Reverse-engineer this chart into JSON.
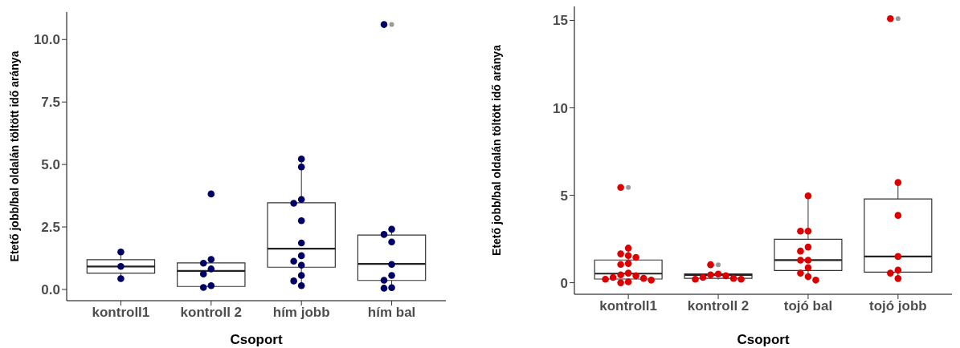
{
  "chart_data": [
    {
      "type": "box",
      "xlabel": "Csoport",
      "ylabel": "Etető jobb/bal oldalán töltött idő aránya",
      "categories": [
        "kontroll1",
        "kontroll 2",
        "hím jobb",
        "hím bal"
      ],
      "ylim": [
        -0.45,
        11.1
      ],
      "yticks": [
        {
          "value": 0,
          "label": "0.0"
        },
        {
          "value": 2.5,
          "label": "2.5"
        },
        {
          "value": 5,
          "label": "5.0"
        },
        {
          "value": 7.5,
          "label": "7.5"
        },
        {
          "value": 10,
          "label": "10.0"
        }
      ],
      "grid": false,
      "marker": "circle",
      "boxes": [
        {
          "low": 0.43,
          "q1": 0.65,
          "median": 0.92,
          "q3": 1.19,
          "high": 1.5
        },
        {
          "low": 0.08,
          "q1": 0.12,
          "median": 0.74,
          "q3": 1.06,
          "high": 1.2
        },
        {
          "low": 0.16,
          "q1": 0.89,
          "median": 1.63,
          "q3": 3.47,
          "high": 5.22
        },
        {
          "low": 0.05,
          "q1": 0.36,
          "median": 1.02,
          "q3": 2.18,
          "high": 2.41,
          "outliers": [
            10.6
          ]
        }
      ],
      "series": [
        {
          "type": "scatter",
          "color": "#000066",
          "x": [
            "kontroll1",
            "kontroll1",
            "kontroll1",
            "kontroll 2",
            "kontroll 2",
            "kontroll 2",
            "kontroll 2",
            "kontroll 2",
            "kontroll 2",
            "kontroll 2",
            "hím jobb",
            "hím jobb",
            "hím jobb",
            "hím jobb",
            "hím jobb",
            "hím jobb",
            "hím jobb",
            "hím jobb",
            "hím jobb",
            "hím jobb",
            "hím jobb",
            "hím jobb",
            "hím bal",
            "hím bal",
            "hím bal",
            "hím bal",
            "hím bal",
            "hím bal",
            "hím bal",
            "hím bal",
            "hím bal"
          ],
          "values": [
            1.5,
            0.92,
            0.43,
            3.82,
            1.2,
            1.05,
            0.82,
            0.62,
            0.15,
            0.08,
            5.22,
            4.9,
            3.6,
            3.45,
            2.75,
            1.86,
            1.35,
            1.13,
            0.97,
            0.56,
            0.34,
            0.15,
            10.6,
            2.41,
            2.2,
            1.9,
            1.0,
            0.56,
            0.37,
            0.07,
            0.05
          ]
        }
      ]
    },
    {
      "type": "box",
      "xlabel": "Csoport",
      "ylabel": "Etető jobb/bal oldalán töltött idő aránya",
      "categories": [
        "kontroll1",
        "kontroll 2",
        "tojó bal",
        "tojó jobb"
      ],
      "ylim": [
        -0.66,
        15.8
      ],
      "yticks": [
        0,
        5,
        10,
        15
      ],
      "grid": false,
      "marker": "circle",
      "boxes": [
        {
          "low": 0.0,
          "q1": 0.21,
          "median": 0.52,
          "q3": 1.3,
          "high": 1.98,
          "outliers": [
            5.45
          ]
        },
        {
          "low": 0.18,
          "q1": 0.25,
          "median": 0.45,
          "q3": 0.5,
          "high": 0.55,
          "outliers": [
            1.03
          ]
        },
        {
          "low": 0.15,
          "q1": 0.7,
          "median": 1.29,
          "q3": 2.49,
          "high": 4.97
        },
        {
          "low": 0.26,
          "q1": 0.61,
          "median": 1.5,
          "q3": 4.79,
          "high": 5.73,
          "outliers": [
            15.1
          ]
        }
      ],
      "series": [
        {
          "type": "scatter",
          "color": "#dd0000",
          "x": [
            "kontroll1",
            "kontroll1",
            "kontroll1",
            "kontroll1",
            "kontroll1",
            "kontroll1",
            "kontroll1",
            "kontroll1",
            "kontroll1",
            "kontroll1",
            "kontroll1",
            "kontroll1",
            "kontroll1",
            "kontroll1",
            "kontroll1",
            "kontroll1",
            "kontroll 2",
            "kontroll 2",
            "kontroll 2",
            "kontroll 2",
            "kontroll 2",
            "kontroll 2",
            "kontroll 2",
            "kontroll 2",
            "tojó bal",
            "tojó bal",
            "tojó bal",
            "tojó bal",
            "tojó bal",
            "tojó bal",
            "tojó bal",
            "tojó bal",
            "tojó bal",
            "tojó bal",
            "tojó bal",
            "tojó jobb",
            "tojó jobb",
            "tojó jobb",
            "tojó jobb",
            "tojó jobb",
            "tojó jobb",
            "tojó jobb"
          ],
          "values": [
            5.45,
            1.98,
            1.65,
            1.55,
            1.45,
            1.1,
            1.05,
            0.55,
            0.45,
            0.4,
            0.3,
            0.25,
            0.2,
            0.15,
            0.05,
            0.0,
            1.03,
            0.5,
            0.45,
            0.4,
            0.3,
            0.25,
            0.2,
            0.2,
            4.97,
            2.95,
            2.95,
            2.04,
            1.81,
            1.29,
            1.29,
            0.86,
            0.55,
            0.35,
            0.15,
            15.1,
            5.73,
            3.85,
            1.5,
            0.72,
            0.55,
            0.24
          ]
        }
      ]
    }
  ]
}
